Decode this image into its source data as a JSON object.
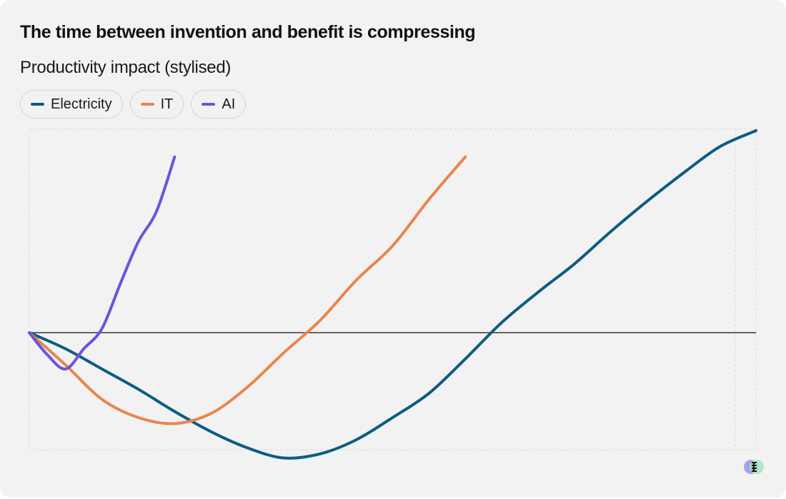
{
  "header": {
    "title": "The time between invention and benefit is compressing",
    "subtitle": "Productivity impact (stylised)"
  },
  "chart_data": {
    "type": "line",
    "title": "The time between invention and benefit is compressing",
    "subtitle": "Productivity impact (stylised)",
    "xlabel": "",
    "ylabel": "",
    "xlim": [
      0,
      1
    ],
    "ylim": [
      -1,
      1
    ],
    "grid": false,
    "legend_position": "top-left",
    "zero_line": true,
    "series": [
      {
        "name": "Electricity",
        "color": "#0c5c82",
        "x": [
          0,
          0.05,
          0.1,
          0.15,
          0.2,
          0.25,
          0.3,
          0.35,
          0.4,
          0.45,
          0.5,
          0.55,
          0.6,
          0.65,
          0.7,
          0.75,
          0.8,
          0.85,
          0.9,
          0.95,
          1
        ],
        "y": [
          0,
          -0.08,
          -0.18,
          -0.28,
          -0.39,
          -0.49,
          -0.57,
          -0.62,
          -0.6,
          -0.53,
          -0.42,
          -0.3,
          -0.13,
          0.05,
          0.2,
          0.34,
          0.5,
          0.65,
          0.79,
          0.92,
          1
        ]
      },
      {
        "name": "IT",
        "color": "#e8864d",
        "x": [
          0,
          0.05,
          0.1,
          0.15,
          0.2,
          0.25,
          0.3,
          0.35,
          0.4,
          0.45,
          0.5,
          0.55,
          0.6
        ],
        "y": [
          0,
          -0.16,
          -0.33,
          -0.42,
          -0.45,
          -0.4,
          -0.27,
          -0.1,
          0.06,
          0.26,
          0.43,
          0.66,
          0.87
        ]
      },
      {
        "name": "AI",
        "color": "#6e52dc",
        "x": [
          0,
          0.025,
          0.05,
          0.075,
          0.1,
          0.125,
          0.15,
          0.175,
          0.2
        ],
        "y": [
          0,
          -0.11,
          -0.18,
          -0.08,
          0.02,
          0.24,
          0.45,
          0.6,
          0.87
        ]
      }
    ]
  }
}
